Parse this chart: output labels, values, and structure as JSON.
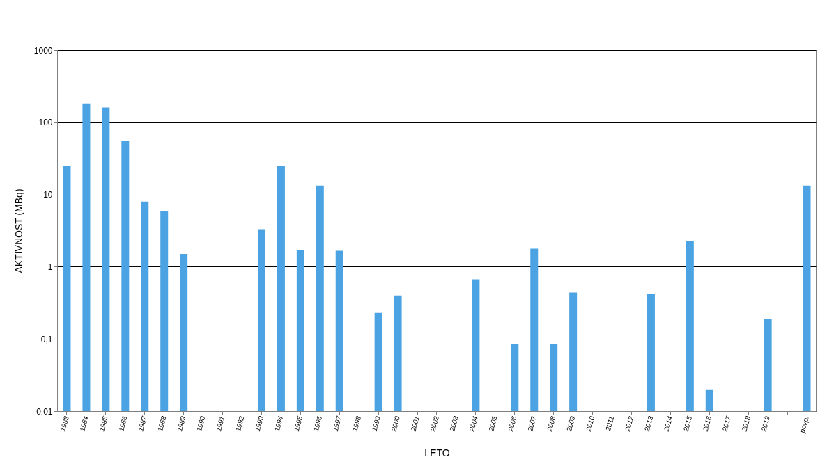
{
  "chart_data": {
    "type": "bar",
    "xlabel": "LETO",
    "ylabel": "AKTIVNOST (MBq)",
    "categories": [
      "1983",
      "1984",
      "1985",
      "1986",
      "1987",
      "1988",
      "1989",
      "1990",
      "1991",
      "1992",
      "1993",
      "1994",
      "1995",
      "1996",
      "1997",
      "1998",
      "1999",
      "2000",
      "2001",
      "2002",
      "2003",
      "2004",
      "2005",
      "2006",
      "2007",
      "2008",
      "2009",
      "2010",
      "2011",
      "2012",
      "2013",
      "2014",
      "2015",
      "2016",
      "2017",
      "2018",
      "2019",
      null,
      "povp."
    ],
    "values": [
      25,
      182,
      160,
      55,
      8.0,
      5.9,
      1.5,
      null,
      null,
      null,
      3.3,
      25,
      1.7,
      13.3,
      1.66,
      null,
      0.23,
      0.4,
      null,
      null,
      null,
      0.67,
      null,
      0.084,
      1.78,
      0.086,
      0.44,
      null,
      null,
      null,
      0.42,
      null,
      2.27,
      0.02,
      null,
      null,
      0.19,
      null,
      13.3
    ],
    "color": "#4ba3e3",
    "log": true,
    "ylim": [
      0.01,
      1000
    ],
    "yticks": [
      {
        "value": 0.01,
        "label": "0,01"
      },
      {
        "value": 0.1,
        "label": "0,1"
      },
      1,
      10,
      100,
      1000
    ],
    "grid": "y"
  }
}
